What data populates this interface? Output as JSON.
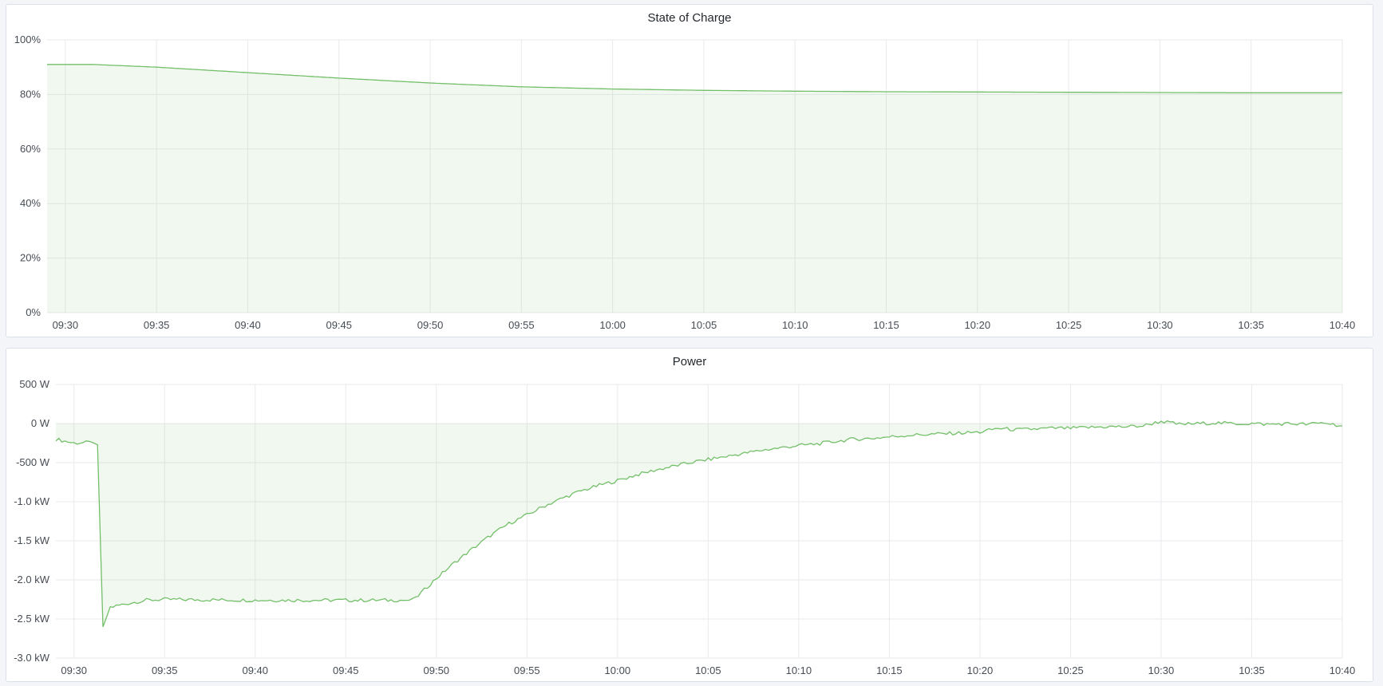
{
  "chart_data": [
    {
      "type": "area",
      "title": "State of Charge",
      "xlim": [
        "09:29",
        "10:40"
      ],
      "ylim": [
        0,
        100
      ],
      "y_ticks": [
        "0%",
        "20%",
        "40%",
        "60%",
        "80%",
        "100%"
      ],
      "y_tick_values": [
        0,
        20,
        40,
        60,
        80,
        100
      ],
      "x_ticks": [
        "09:30",
        "09:35",
        "09:40",
        "09:45",
        "09:50",
        "09:55",
        "10:00",
        "10:05",
        "10:10",
        "10:15",
        "10:20",
        "10:25",
        "10:30",
        "10:35",
        "10:40"
      ],
      "grid": true,
      "color": "#73bf69",
      "points": [
        [
          "09:29",
          91
        ],
        [
          "09:31.5",
          91
        ],
        [
          "09:35",
          90
        ],
        [
          "09:40",
          88
        ],
        [
          "09:45",
          86
        ],
        [
          "09:50",
          84.2
        ],
        [
          "09:55",
          82.8
        ],
        [
          "10:00",
          82
        ],
        [
          "10:05",
          81.5
        ],
        [
          "10:10",
          81.2
        ],
        [
          "10:15",
          81
        ],
        [
          "10:20",
          80.9
        ],
        [
          "10:25",
          80.8
        ],
        [
          "10:30",
          80.7
        ],
        [
          "10:35",
          80.6
        ],
        [
          "10:40",
          80.6
        ]
      ]
    },
    {
      "type": "area",
      "title": "Power",
      "xlim": [
        "09:29",
        "10:40"
      ],
      "ylim": [
        -3000,
        500
      ],
      "y_ticks": [
        "-3.0 kW",
        "-2.5 kW",
        "-2.0 kW",
        "-1.5 kW",
        "-1.0 kW",
        "-500 W",
        "0 W",
        "500 W"
      ],
      "y_tick_values": [
        -3000,
        -2500,
        -2000,
        -1500,
        -1000,
        -500,
        0,
        500
      ],
      "x_ticks": [
        "09:30",
        "09:35",
        "09:40",
        "09:45",
        "09:50",
        "09:55",
        "10:00",
        "10:05",
        "10:10",
        "10:15",
        "10:20",
        "10:25",
        "10:30",
        "10:35",
        "10:40"
      ],
      "grid": true,
      "color": "#73bf69",
      "points": [
        [
          "09:29",
          -200
        ],
        [
          "09:30",
          -250
        ],
        [
          "09:31",
          -240
        ],
        [
          "09:31.3",
          -270
        ],
        [
          "09:31.6",
          -2600
        ],
        [
          "09:32",
          -2350
        ],
        [
          "09:33",
          -2300
        ],
        [
          "09:34",
          -2260
        ],
        [
          "09:35",
          -2250
        ],
        [
          "09:40",
          -2260
        ],
        [
          "09:45",
          -2260
        ],
        [
          "09:48.5",
          -2260
        ],
        [
          "09:49",
          -2200
        ],
        [
          "09:50",
          -1980
        ],
        [
          "09:51",
          -1780
        ],
        [
          "09:52",
          -1600
        ],
        [
          "09:53",
          -1430
        ],
        [
          "09:54",
          -1280
        ],
        [
          "09:55",
          -1170
        ],
        [
          "09:56",
          -1050
        ],
        [
          "09:57",
          -950
        ],
        [
          "09:58",
          -860
        ],
        [
          "09:59",
          -790
        ],
        [
          "10:00",
          -730
        ],
        [
          "10:01",
          -660
        ],
        [
          "10:02",
          -600
        ],
        [
          "10:03",
          -550
        ],
        [
          "10:04",
          -500
        ],
        [
          "10:05",
          -460
        ],
        [
          "10:06",
          -420
        ],
        [
          "10:07",
          -380
        ],
        [
          "10:08",
          -340
        ],
        [
          "10:09",
          -310
        ],
        [
          "10:10",
          -280
        ],
        [
          "10:11",
          -260
        ],
        [
          "10:12",
          -230
        ],
        [
          "10:13",
          -200
        ],
        [
          "10:14",
          -190
        ],
        [
          "10:15",
          -170
        ],
        [
          "10:16",
          -150
        ],
        [
          "10:17",
          -140
        ],
        [
          "10:18",
          -130
        ],
        [
          "10:19",
          -120
        ],
        [
          "10:20",
          -110
        ],
        [
          "10:21",
          -60
        ],
        [
          "10:22",
          -80
        ],
        [
          "10:23",
          -70
        ],
        [
          "10:24",
          -60
        ],
        [
          "10:25",
          -60
        ],
        [
          "10:26",
          -50
        ],
        [
          "10:27",
          -40
        ],
        [
          "10:28",
          -40
        ],
        [
          "10:29",
          -30
        ],
        [
          "10:30",
          30
        ],
        [
          "10:31",
          -10
        ],
        [
          "10:32",
          0
        ],
        [
          "10:33",
          10
        ],
        [
          "10:34",
          0
        ],
        [
          "10:35",
          0
        ],
        [
          "10:36",
          -10
        ],
        [
          "10:37",
          0
        ],
        [
          "10:38",
          -10
        ],
        [
          "10:39",
          10
        ],
        [
          "10:40",
          -30
        ]
      ]
    }
  ]
}
